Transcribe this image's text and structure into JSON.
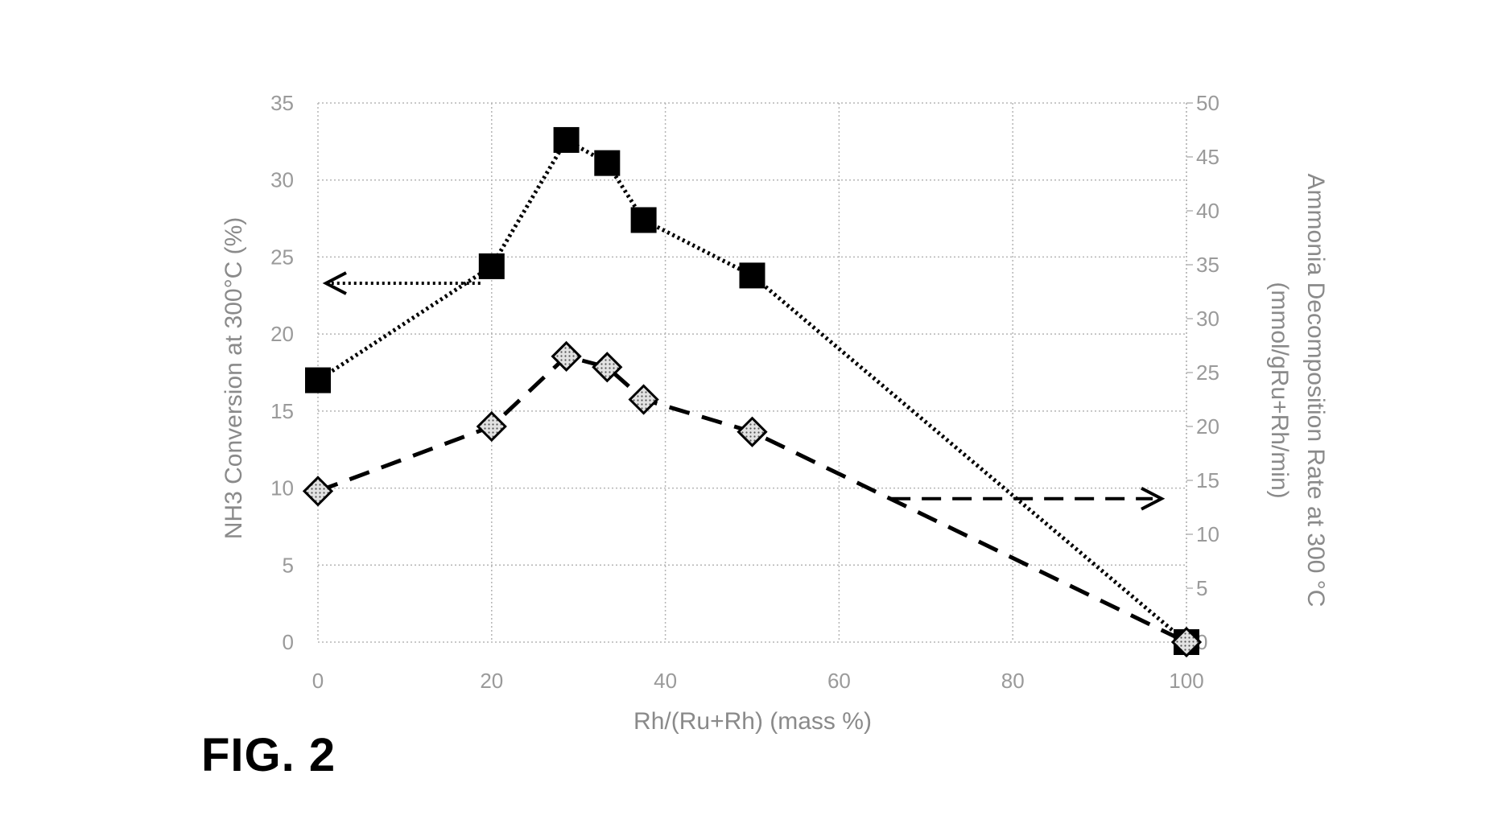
{
  "figure_label": "FIG. 2",
  "chart_data": {
    "type": "scatter",
    "xlabel": "Rh/(Ru+Rh) (mass %)",
    "ylabel_left": "NH3 Conversion at 300°C (%)",
    "ylabel_right_line1": "Ammonia Decomposition Rate at 300 °C",
    "ylabel_right_line2": "(mmol/gRu+Rh/min)",
    "xlim": [
      0,
      100
    ],
    "ylim_left": [
      0,
      35
    ],
    "ylim_right": [
      0,
      50
    ],
    "x_ticks": [
      "0",
      "20",
      "40",
      "60",
      "80",
      "100"
    ],
    "y_left_ticks": [
      "0",
      "5",
      "10",
      "15",
      "20",
      "25",
      "30",
      "35"
    ],
    "y_right_ticks": [
      "0",
      "5",
      "10",
      "15",
      "20",
      "25",
      "30",
      "35",
      "40",
      "45",
      "50"
    ],
    "grid": true,
    "series": [
      {
        "axis": "left",
        "marker": "filled-square",
        "line": "dotted",
        "color": "#000000",
        "x": [
          0,
          20,
          28.6,
          33.3,
          37.5,
          50,
          100
        ],
        "y": [
          17.0,
          24.4,
          32.6,
          31.1,
          27.4,
          23.8,
          0
        ]
      },
      {
        "axis": "right",
        "marker": "hatched-diamond",
        "line": "dashed",
        "color": "#000000",
        "x": [
          0,
          20,
          28.6,
          33.3,
          37.5,
          50,
          100
        ],
        "y": [
          14.0,
          20.0,
          26.5,
          25.5,
          22.5,
          19.5,
          0
        ]
      }
    ]
  }
}
